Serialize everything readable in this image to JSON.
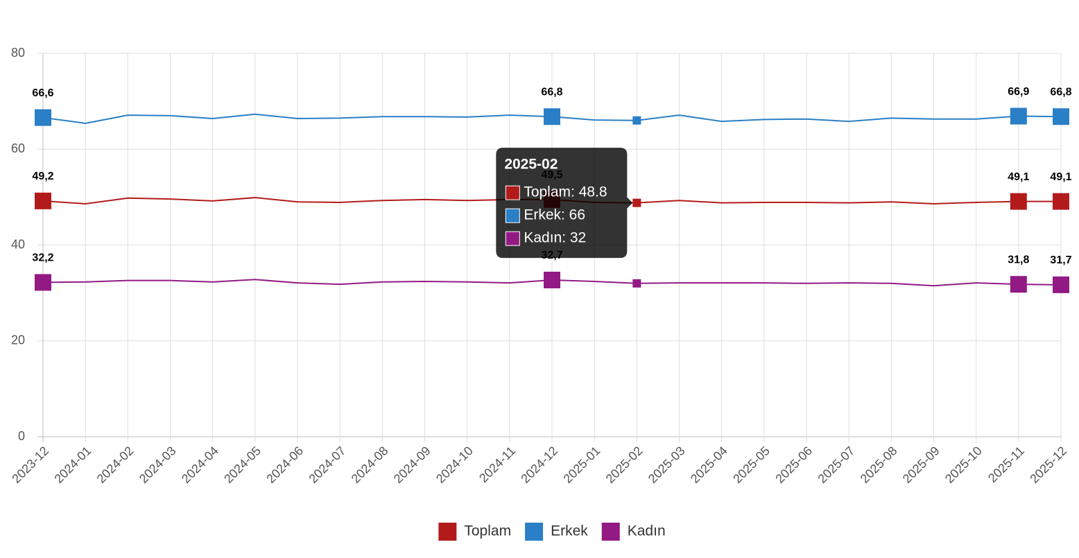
{
  "chart_data": {
    "type": "line",
    "categories": [
      "2023-12",
      "2024-01",
      "2024-02",
      "2024-03",
      "2024-04",
      "2024-05",
      "2024-06",
      "2024-07",
      "2024-08",
      "2024-09",
      "2024-10",
      "2024-11",
      "2024-12",
      "2025-01",
      "2025-02",
      "2025-03",
      "2025-04",
      "2025-05",
      "2025-06",
      "2025-07",
      "2025-08",
      "2025-09",
      "2025-10",
      "2025-11",
      "2025-12"
    ],
    "series": [
      {
        "name": "Toplam",
        "color": "#b31b1b",
        "values": [
          49.2,
          48.6,
          49.8,
          49.6,
          49.2,
          49.9,
          49.0,
          48.9,
          49.3,
          49.5,
          49.3,
          49.5,
          49.5,
          48.9,
          48.8,
          49.3,
          48.8,
          48.9,
          48.9,
          48.8,
          49.0,
          48.6,
          48.9,
          49.1,
          49.1
        ],
        "value_labels": [
          "49,2",
          null,
          null,
          null,
          null,
          null,
          null,
          null,
          null,
          null,
          null,
          null,
          "49,5",
          null,
          null,
          null,
          null,
          null,
          null,
          null,
          null,
          null,
          null,
          "49,1",
          "49,1"
        ]
      },
      {
        "name": "Erkek",
        "color": "#2a7fc6",
        "values": [
          66.6,
          65.4,
          67.1,
          67.0,
          66.4,
          67.3,
          66.4,
          66.5,
          66.8,
          66.8,
          66.7,
          67.1,
          66.8,
          66.1,
          66,
          67.1,
          65.8,
          66.2,
          66.3,
          65.8,
          66.5,
          66.3,
          66.3,
          66.9,
          66.8
        ],
        "value_labels": [
          "66,6",
          null,
          null,
          null,
          null,
          null,
          null,
          null,
          null,
          null,
          null,
          null,
          "66,8",
          null,
          null,
          null,
          null,
          null,
          null,
          null,
          null,
          null,
          null,
          "66,9",
          "66,8"
        ]
      },
      {
        "name": "Kadın",
        "color": "#931a84",
        "values": [
          32.2,
          32.3,
          32.6,
          32.6,
          32.3,
          32.8,
          32.1,
          31.8,
          32.3,
          32.4,
          32.3,
          32.1,
          32.7,
          32.4,
          32,
          32.1,
          32.1,
          32.1,
          32.0,
          32.1,
          32.0,
          31.5,
          32.1,
          31.8,
          31.7
        ],
        "value_labels": [
          "32,2",
          null,
          null,
          null,
          null,
          null,
          null,
          null,
          null,
          null,
          null,
          null,
          "32,7",
          null,
          null,
          null,
          null,
          null,
          null,
          null,
          null,
          null,
          null,
          "31,8",
          "31,7"
        ]
      }
    ],
    "ylim": [
      0,
      80
    ],
    "yticks": [
      0,
      20,
      40,
      60,
      80
    ],
    "grid": true,
    "legend": "bottom",
    "tooltip": {
      "title": "2025-02",
      "items": [
        "Toplam: 48.8",
        "Erkek: 66",
        "Kadın: 32"
      ]
    }
  }
}
